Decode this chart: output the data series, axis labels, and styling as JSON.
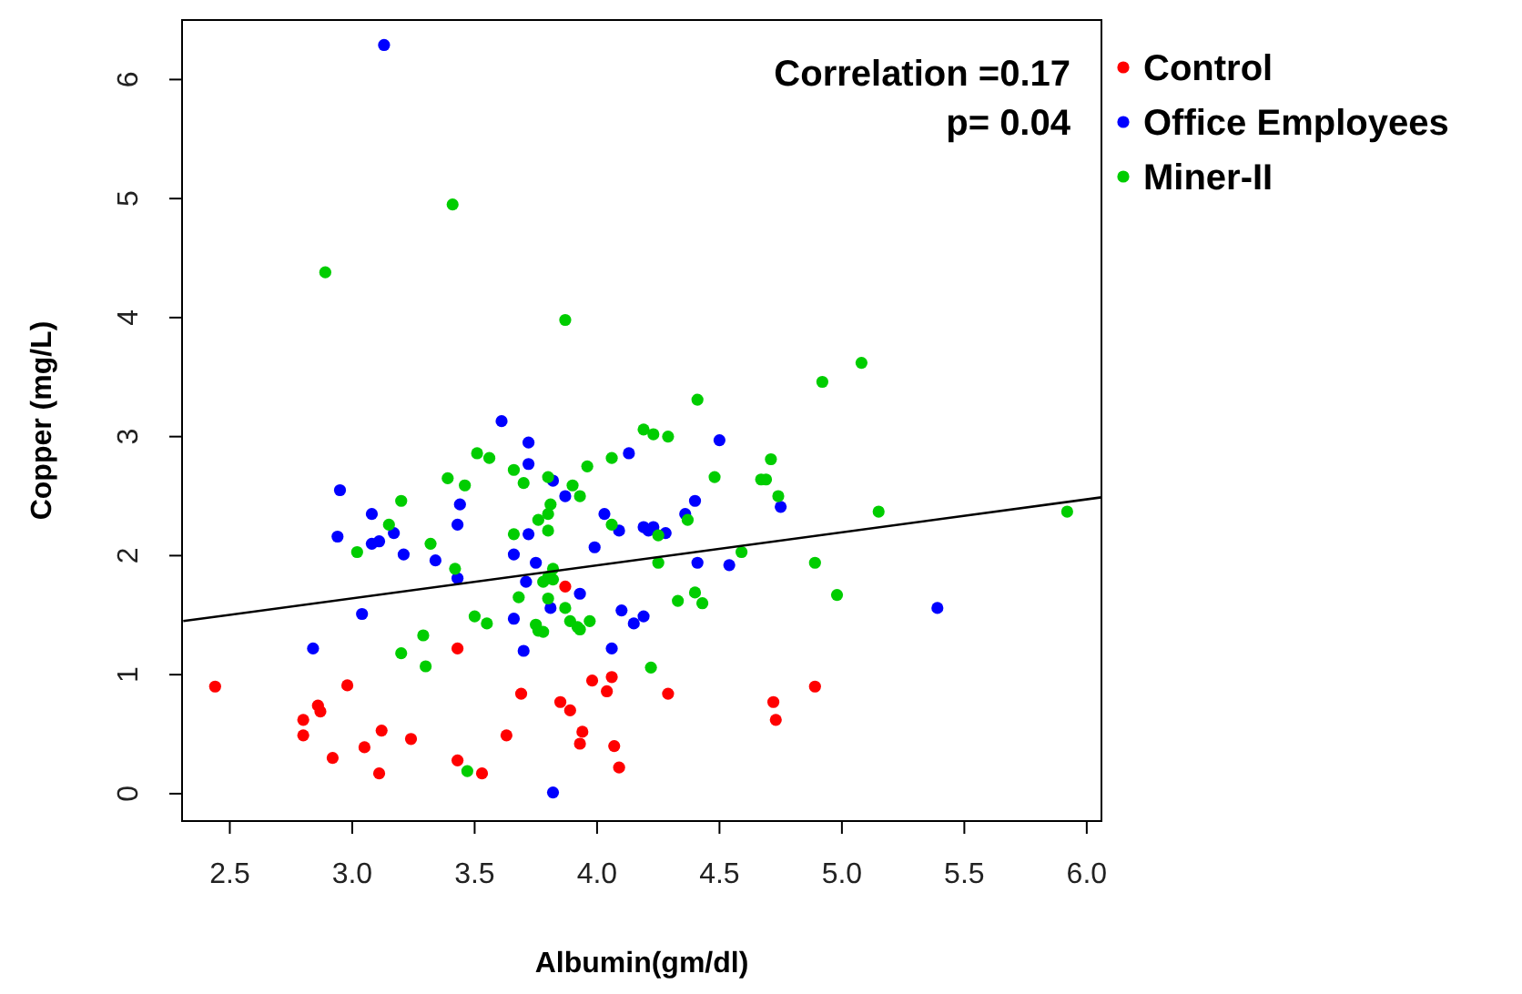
{
  "chart_data": {
    "type": "scatter",
    "xlabel": "Albumin(gm/dl)",
    "ylabel": "Copper (mg/L)",
    "annotations": [
      "Correlation =0.17",
      "p= 0.04"
    ],
    "xlim": [
      2.305,
      6.06
    ],
    "ylim": [
      -0.23,
      6.5
    ],
    "xticks": [
      2.5,
      {
        "value": 3,
        "label": "3.0"
      },
      3.5,
      {
        "value": 4,
        "label": "4.0"
      },
      4.5,
      {
        "value": 5,
        "label": "5.0"
      },
      5.5,
      {
        "value": 6,
        "label": "6.0"
      }
    ],
    "yticks": [
      0,
      1,
      2,
      3,
      4,
      5,
      6
    ],
    "legend": "right",
    "series": [
      {
        "name": "Control",
        "color": "#ff0000",
        "marker": "circle",
        "x": [
          2.44,
          2.98,
          3.43,
          3.87,
          2.86,
          2.87,
          2.8,
          2.8,
          2.92,
          3.05,
          3.12,
          3.11,
          3.24,
          3.43,
          3.53,
          3.63,
          3.69,
          3.85,
          3.89,
          3.94,
          3.93,
          3.98,
          4.06,
          4.04,
          4.07,
          4.09,
          4.29,
          4.72,
          4.73,
          4.89
        ],
        "values": [
          0.9,
          0.91,
          1.22,
          1.74,
          0.74,
          0.69,
          0.62,
          0.49,
          0.3,
          0.39,
          0.53,
          0.17,
          0.46,
          0.28,
          0.17,
          0.49,
          0.84,
          0.77,
          0.7,
          0.52,
          0.42,
          0.95,
          0.98,
          0.86,
          0.4,
          0.22,
          0.84,
          0.77,
          0.62,
          0.9
        ]
      },
      {
        "name": "Office Employees",
        "color": "#0000ff",
        "marker": "circle",
        "x": [
          3.13,
          3.61,
          3.72,
          3.72,
          3.82,
          3.87,
          2.95,
          3.08,
          3.44,
          3.43,
          3.17,
          3.11,
          3.08,
          2.94,
          3.21,
          3.34,
          3.43,
          3.72,
          3.66,
          3.75,
          3.71,
          4.03,
          4.09,
          4.13,
          4.19,
          4.21,
          3.99,
          3.93,
          3.81,
          3.66,
          3.04,
          2.84,
          3.7,
          4.06,
          4.1,
          4.15,
          4.19,
          3.82,
          4.5,
          4.4,
          4.36,
          4.75,
          4.23,
          4.28,
          4.41,
          4.54,
          5.39
        ],
        "values": [
          6.29,
          3.13,
          2.95,
          2.77,
          2.63,
          2.5,
          2.55,
          2.35,
          2.43,
          2.26,
          2.19,
          2.12,
          2.1,
          2.16,
          2.01,
          1.96,
          1.81,
          2.18,
          2.01,
          1.94,
          1.78,
          2.35,
          2.21,
          2.86,
          2.24,
          2.21,
          2.07,
          1.68,
          1.56,
          1.47,
          1.51,
          1.22,
          1.2,
          1.22,
          1.54,
          1.43,
          1.49,
          0.01,
          2.97,
          2.46,
          2.35,
          2.41,
          2.24,
          2.19,
          1.94,
          1.92,
          1.56
        ]
      },
      {
        "name": "Miner-II",
        "color": "#00cd00",
        "marker": "circle",
        "x": [
          3.41,
          2.89,
          3.87,
          4.41,
          4.92,
          5.08,
          4.19,
          4.23,
          3.51,
          3.56,
          3.66,
          3.7,
          3.39,
          3.46,
          3.8,
          3.9,
          3.93,
          3.96,
          4.06,
          3.2,
          3.15,
          3.02,
          3.32,
          3.81,
          3.8,
          3.76,
          3.8,
          3.66,
          4.06,
          3.42,
          3.82,
          3.78,
          3.82,
          3.8,
          3.68,
          3.8,
          3.87,
          3.5,
          3.55,
          3.89,
          3.93,
          3.92,
          3.97,
          3.75,
          3.76,
          3.78,
          3.29,
          3.2,
          3.3,
          4.22,
          3.47,
          4.25,
          4.29,
          4.71,
          4.48,
          4.67,
          4.69,
          4.74,
          4.37,
          4.25,
          5.15,
          5.92,
          4.59,
          4.89,
          4.98,
          4.33,
          4.4,
          4.43
        ],
        "values": [
          4.95,
          4.38,
          3.98,
          3.31,
          3.46,
          3.62,
          3.06,
          3.02,
          2.86,
          2.82,
          2.72,
          2.61,
          2.65,
          2.59,
          2.66,
          2.59,
          2.5,
          2.75,
          2.82,
          2.46,
          2.26,
          2.03,
          2.1,
          2.43,
          2.35,
          2.3,
          2.21,
          2.18,
          2.26,
          1.89,
          1.89,
          1.78,
          1.8,
          1.82,
          1.65,
          1.64,
          1.56,
          1.49,
          1.43,
          1.45,
          1.38,
          1.4,
          1.45,
          1.42,
          1.37,
          1.36,
          1.33,
          1.18,
          1.07,
          1.06,
          0.19,
          1.94,
          3,
          2.81,
          2.66,
          2.64,
          2.64,
          2.5,
          2.3,
          2.17,
          2.37,
          2.37,
          2.03,
          1.94,
          1.67,
          1.62,
          1.69,
          1.6
        ]
      },
      {
        "type": "line",
        "color": "#000000",
        "marker": "none",
        "x": [
          2.31,
          6.06
        ],
        "values": [
          1.45,
          2.49
        ]
      }
    ]
  }
}
